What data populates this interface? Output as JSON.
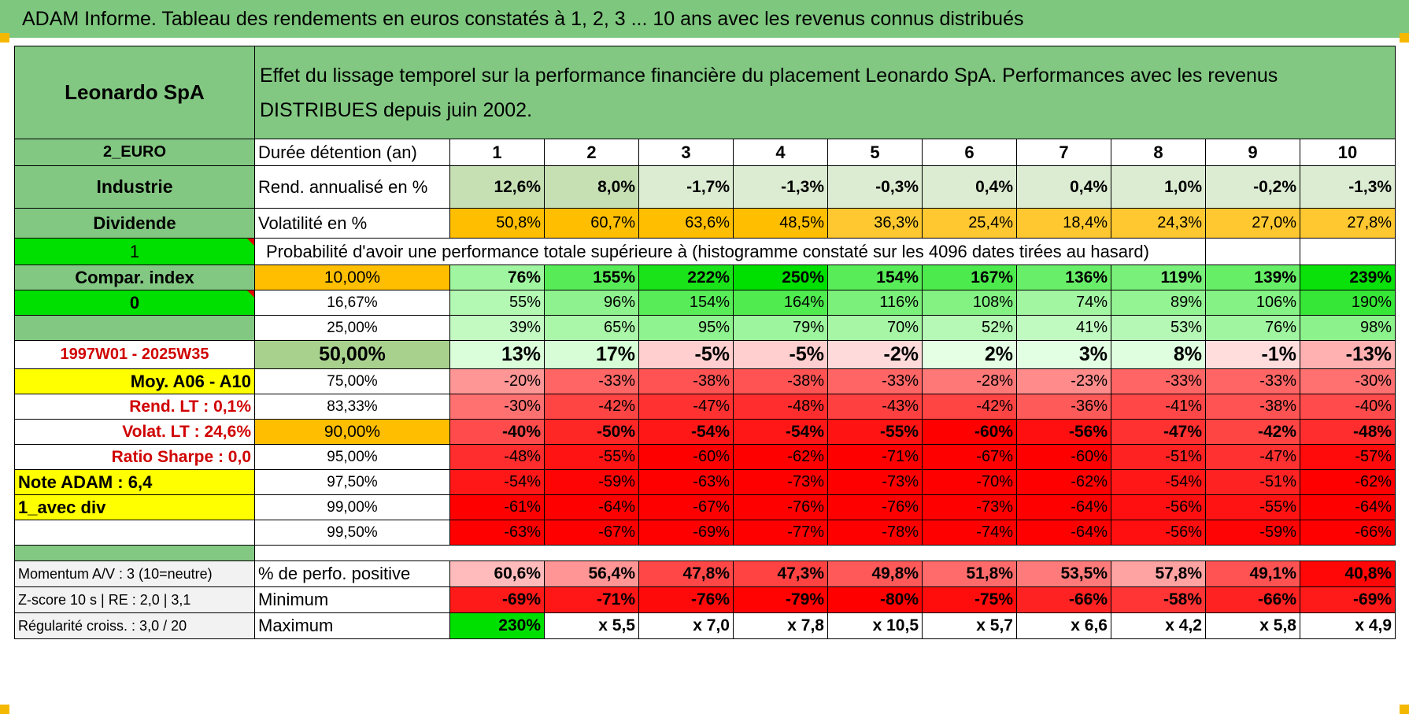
{
  "title": "ADAM Informe. Tableau des rendements en euros constatés à 1, 2, 3 ... 10 ans avec les revenus connus distribués",
  "header": {
    "name": "Leonardo SpA",
    "description": "Effet du lissage temporel sur la performance financière du placement Leonardo SpA. Performances avec les revenus DISTRIBUES depuis juin 2002."
  },
  "left": {
    "currency": "2_EURO",
    "sector": "Industrie",
    "dividend": "Dividende",
    "one": "1",
    "compar": "Compar. index",
    "zero": "0",
    "period": "1997W01 - 2025W35",
    "avg": "Moy. A06 - A10",
    "rend_lt": "Rend. LT :    0,1%",
    "volat_lt": "Volat. LT :    24,6%",
    "sharpe": "Ratio Sharpe :    0,0",
    "note": "Note ADAM : 6,4",
    "avec_div": "1_avec div",
    "momentum": "Momentum A/V : 3 (10=neutre)",
    "zscore": "Z-score 10 s | RE : 2,0 | 3,1",
    "regularite": "Régularité croiss. : 3,0 / 20"
  },
  "labels": {
    "duration": "Durée détention (an)",
    "rend": "Rend. annualisé en %",
    "vol": "Volatilité en %",
    "proba": "Probabilité d'avoir une performance totale supérieure à (histogramme constaté sur les 4096 dates tirées au hasard)",
    "pos": "% de perfo. positive",
    "min": "Minimum",
    "max": "Maximum"
  },
  "years": [
    "1",
    "2",
    "3",
    "4",
    "5",
    "6",
    "7",
    "8",
    "9",
    "10"
  ],
  "rend": [
    "12,6%",
    "8,0%",
    "-1,7%",
    "-1,3%",
    "-0,3%",
    "0,4%",
    "0,4%",
    "1,0%",
    "-0,2%",
    "-1,3%"
  ],
  "vol": [
    "50,8%",
    "60,7%",
    "63,6%",
    "48,5%",
    "36,3%",
    "25,4%",
    "18,4%",
    "24,3%",
    "27,0%",
    "27,8%"
  ],
  "quantiles": [
    {
      "p": "10,00%",
      "v": [
        "76%",
        "155%",
        "222%",
        "250%",
        "154%",
        "167%",
        "136%",
        "119%",
        "139%",
        "239%"
      ]
    },
    {
      "p": "16,67%",
      "v": [
        "55%",
        "96%",
        "154%",
        "164%",
        "116%",
        "108%",
        "74%",
        "89%",
        "106%",
        "190%"
      ]
    },
    {
      "p": "25,00%",
      "v": [
        "39%",
        "65%",
        "95%",
        "79%",
        "70%",
        "52%",
        "41%",
        "53%",
        "76%",
        "98%"
      ]
    },
    {
      "p": "50,00%",
      "v": [
        "13%",
        "17%",
        "-5%",
        "-5%",
        "-2%",
        "2%",
        "3%",
        "8%",
        "-1%",
        "-13%"
      ]
    },
    {
      "p": "75,00%",
      "v": [
        "-20%",
        "-33%",
        "-38%",
        "-38%",
        "-33%",
        "-28%",
        "-23%",
        "-33%",
        "-33%",
        "-30%"
      ]
    },
    {
      "p": "83,33%",
      "v": [
        "-30%",
        "-42%",
        "-47%",
        "-48%",
        "-43%",
        "-42%",
        "-36%",
        "-41%",
        "-38%",
        "-40%"
      ]
    },
    {
      "p": "90,00%",
      "v": [
        "-40%",
        "-50%",
        "-54%",
        "-54%",
        "-55%",
        "-60%",
        "-56%",
        "-47%",
        "-42%",
        "-48%"
      ]
    },
    {
      "p": "95,00%",
      "v": [
        "-48%",
        "-55%",
        "-60%",
        "-62%",
        "-71%",
        "-67%",
        "-60%",
        "-51%",
        "-47%",
        "-57%"
      ]
    },
    {
      "p": "97,50%",
      "v": [
        "-54%",
        "-59%",
        "-63%",
        "-73%",
        "-73%",
        "-70%",
        "-62%",
        "-54%",
        "-51%",
        "-62%"
      ]
    },
    {
      "p": "99,00%",
      "v": [
        "-61%",
        "-64%",
        "-67%",
        "-76%",
        "-76%",
        "-73%",
        "-64%",
        "-56%",
        "-55%",
        "-64%"
      ]
    },
    {
      "p": "99,50%",
      "v": [
        "-63%",
        "-67%",
        "-69%",
        "-77%",
        "-78%",
        "-74%",
        "-64%",
        "-56%",
        "-59%",
        "-66%"
      ]
    }
  ],
  "pos": [
    "60,6%",
    "56,4%",
    "47,8%",
    "47,3%",
    "49,8%",
    "51,8%",
    "53,5%",
    "57,8%",
    "49,1%",
    "40,8%"
  ],
  "min": [
    "-69%",
    "-71%",
    "-76%",
    "-79%",
    "-80%",
    "-75%",
    "-66%",
    "-58%",
    "-66%",
    "-69%"
  ],
  "max": [
    "230%",
    "x 5,5",
    "x 7,0",
    "x 7,8",
    "x 10,5",
    "x 5,7",
    "x 6,6",
    "x 4,2",
    "x 5,8",
    "x 4,9"
  ],
  "colors": {
    "header_green": "#82c882",
    "title_green": "#7ec77e",
    "highlight_orange": "#ffbf00",
    "label_red": "#d00000",
    "yellow": "#ffff00",
    "bright_green": "#00e000"
  }
}
